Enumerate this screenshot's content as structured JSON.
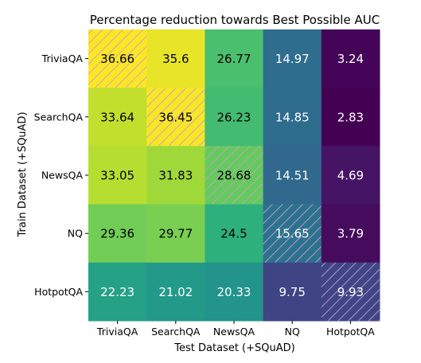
{
  "chart_data": {
    "type": "heatmap",
    "title": "Percentage reduction towards Best Possible AUC",
    "xlabel": "Test Dataset (+SQuAD)",
    "ylabel": "Train Dataset (+SQuAD)",
    "x_categories": [
      "TriviaQA",
      "SearchQA",
      "NewsQA",
      "NQ",
      "HotpotQA"
    ],
    "y_categories": [
      "TriviaQA",
      "SearchQA",
      "NewsQA",
      "NQ",
      "HotpotQA"
    ],
    "values": [
      [
        36.66,
        35.6,
        26.77,
        14.97,
        3.24
      ],
      [
        33.64,
        36.45,
        26.23,
        14.85,
        2.83
      ],
      [
        33.05,
        31.83,
        28.68,
        14.51,
        4.69
      ],
      [
        29.36,
        29.77,
        24.5,
        15.65,
        3.79
      ],
      [
        22.23,
        21.02,
        20.33,
        9.75,
        9.93
      ]
    ],
    "value_labels": [
      [
        "36.66",
        "35.6",
        "26.77",
        "14.97",
        "3.24"
      ],
      [
        "33.64",
        "36.45",
        "26.23",
        "14.85",
        "2.83"
      ],
      [
        "33.05",
        "31.83",
        "28.68",
        "14.51",
        "4.69"
      ],
      [
        "29.36",
        "29.77",
        "24.5",
        "15.65",
        "3.79"
      ],
      [
        "22.23",
        "21.02",
        "20.33",
        "9.75",
        "9.93"
      ]
    ],
    "colormap": "viridis",
    "hatched_diagonal": true,
    "hatch_color": "#c6a0c8",
    "legend": "none",
    "grid": false
  }
}
